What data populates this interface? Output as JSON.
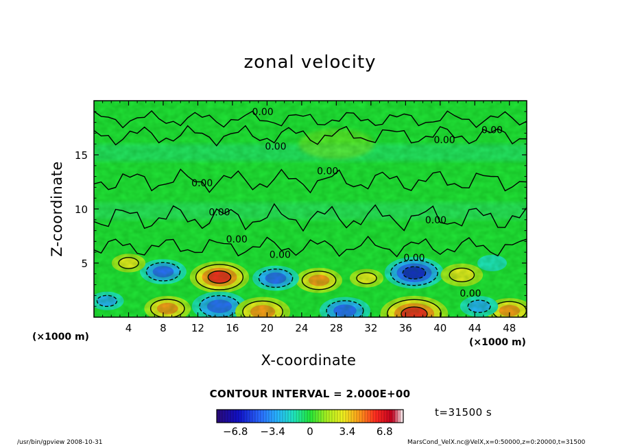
{
  "chart_data": {
    "type": "heatmap",
    "title": "zonal velocity",
    "xlabel": "X-coordinate",
    "ylabel": "Z-coordinate",
    "x_unit_label": "(×1000 m)",
    "x_unit_label_right": "(×1000 m)",
    "xlim": [
      0,
      50
    ],
    "ylim": [
      0,
      20
    ],
    "x_ticks": [
      "4",
      "8",
      "12",
      "16",
      "20",
      "24",
      "28",
      "32",
      "36",
      "40",
      "44",
      "48"
    ],
    "x_tick_values": [
      4,
      8,
      12,
      16,
      20,
      24,
      28,
      32,
      36,
      40,
      44,
      48
    ],
    "y_ticks": [
      "5",
      "10",
      "15"
    ],
    "y_tick_values": [
      5,
      10,
      15
    ],
    "contour_labels": [
      {
        "text": "0.00",
        "x": 19.5,
        "y": 19.0
      },
      {
        "text": "0.00",
        "x": 46.0,
        "y": 17.3
      },
      {
        "text": "0.00",
        "x": 40.5,
        "y": 16.4
      },
      {
        "text": "0.00",
        "x": 21.0,
        "y": 15.8
      },
      {
        "text": "0.00",
        "x": 27.0,
        "y": 13.5
      },
      {
        "text": "0.00",
        "x": 12.5,
        "y": 12.4
      },
      {
        "text": "0.00",
        "x": 14.5,
        "y": 9.7
      },
      {
        "text": "0.00",
        "x": 39.5,
        "y": 9.0
      },
      {
        "text": "0.00",
        "x": 16.5,
        "y": 7.2
      },
      {
        "text": "0.00",
        "x": 21.5,
        "y": 5.8
      },
      {
        "text": "0.00",
        "x": 37.0,
        "y": 5.5
      },
      {
        "text": "0.00",
        "x": 43.5,
        "y": 2.2
      }
    ],
    "features": [
      {
        "x": 14.5,
        "z": 3.7,
        "value": 6.0
      },
      {
        "x": 26.0,
        "z": 3.4,
        "value": 4.5
      },
      {
        "x": 37.0,
        "z": 4.1,
        "value": -6.0
      },
      {
        "x": 14.5,
        "z": 1.0,
        "value": -5.5
      },
      {
        "x": 29.0,
        "z": 0.6,
        "value": -5.0
      },
      {
        "x": 8.5,
        "z": 0.8,
        "value": 4.5
      },
      {
        "x": 19.5,
        "z": 0.5,
        "value": 5.5
      },
      {
        "x": 37.0,
        "z": 0.3,
        "value": 7.0
      },
      {
        "x": 8.0,
        "z": 4.2,
        "value": -4.5
      },
      {
        "x": 21.0,
        "z": 3.6,
        "value": -4.5
      },
      {
        "x": 4.0,
        "z": 5.0,
        "value": 3.0
      },
      {
        "x": 31.5,
        "z": 3.6,
        "value": 3.0
      },
      {
        "x": 42.5,
        "z": 3.9,
        "value": 4.0
      },
      {
        "x": 48.0,
        "z": 0.6,
        "value": 4.5
      },
      {
        "x": 44.5,
        "z": 1.0,
        "value": -3.5
      },
      {
        "x": 1.5,
        "z": 1.5,
        "value": -3.0
      },
      {
        "x": 46.0,
        "z": 5.0,
        "value": -2.5
      }
    ],
    "contour_interval_label": "CONTOUR INTERVAL = 2.000E+00",
    "time_label": "t=31500 s",
    "colorbar": {
      "min": -8.5,
      "max": 8.5,
      "tick_labels": [
        "−6.8",
        "−3.4",
        "0",
        "3.4",
        "6.8"
      ],
      "tick_values": [
        -6.8,
        -3.4,
        0,
        3.4,
        6.8
      ]
    }
  },
  "footer": {
    "left": "/usr/bin/gpview   2008-10-31",
    "right": "MarsCond_VelX.nc@VelX,x=0:50000,z=0:20000,t=31500"
  }
}
